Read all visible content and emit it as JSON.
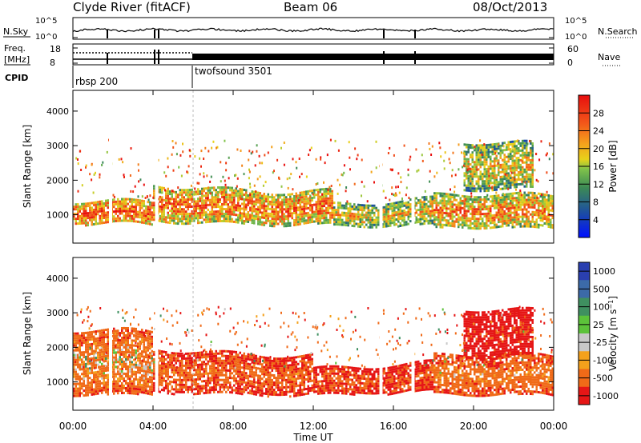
{
  "header": {
    "station": "Clyde River (fitACF)",
    "beam": "Beam 06",
    "date": "08/Oct/2013"
  },
  "top_panel": {
    "left_label": "N.Sky",
    "right_label": "N.Search",
    "left_ticks": [
      "10^5",
      "10^0"
    ],
    "right_ticks": [
      "10^5",
      "10^0"
    ]
  },
  "freq_panel": {
    "left_label_1": "Freq.",
    "left_label_2": "[MHz]",
    "left_ticks": [
      "18",
      "8"
    ],
    "right_label": "Nave",
    "right_ticks": [
      "60",
      "0"
    ]
  },
  "cpid_panel": {
    "label": "CPID",
    "modes": [
      "rbsp 200",
      "twofsound 3501"
    ]
  },
  "chart_data": [
    {
      "type": "heatmap",
      "parameter": "power",
      "xlabel": "Time UT",
      "ylabel": "Slant Range [km]",
      "x_ticks": [
        "00:00",
        "04:00",
        "08:00",
        "12:00",
        "16:00",
        "20:00",
        "00:00"
      ],
      "x_range_hours": [
        0,
        24
      ],
      "y_ticks": [
        1000,
        2000,
        3000,
        4000
      ],
      "y_range_km": [
        180,
        4600
      ],
      "colorbar": {
        "label": "Power [dB]",
        "range": [
          0,
          32
        ],
        "ticks": [
          "4",
          "8",
          "12",
          "16",
          "20",
          "24",
          "28"
        ]
      },
      "echo_bands": [
        {
          "start_h": 0.0,
          "end_h": 4.0,
          "range_km": [
            700,
            1300
          ],
          "level": 27
        },
        {
          "start_h": 4.0,
          "end_h": 13.0,
          "range_km": [
            800,
            1800
          ],
          "level": 25
        },
        {
          "start_h": 13.0,
          "end_h": 18.0,
          "range_km": [
            700,
            1400
          ],
          "level": 20
        },
        {
          "start_h": 18.0,
          "end_h": 24.0,
          "range_km": [
            600,
            1500
          ],
          "level": 24
        },
        {
          "start_h": 19.5,
          "end_h": 23.0,
          "range_km": [
            1700,
            3000
          ],
          "level": 20
        }
      ]
    },
    {
      "type": "heatmap",
      "parameter": "velocity",
      "xlabel": "Time UT",
      "ylabel": "Slant Range [km]",
      "x_ticks": [
        "00:00",
        "04:00",
        "08:00",
        "12:00",
        "16:00",
        "20:00",
        "00:00"
      ],
      "x_range_hours": [
        0,
        24
      ],
      "y_ticks": [
        1000,
        2000,
        3000,
        4000
      ],
      "y_range_km": [
        180,
        4600
      ],
      "colorbar": {
        "label": "Velocity [m s^-1]",
        "ticks": [
          "1000",
          "500",
          "100",
          "25",
          "-25",
          "-100",
          "-500",
          "-1000"
        ]
      },
      "echo_bands": [
        {
          "start_h": 0.0,
          "end_h": 4.0,
          "range_km": [
            600,
            2400
          ],
          "level": -100
        },
        {
          "start_h": 4.0,
          "end_h": 12.0,
          "range_km": [
            700,
            1900
          ],
          "level": -300
        },
        {
          "start_h": 12.0,
          "end_h": 18.0,
          "range_km": [
            700,
            1500
          ],
          "level": -400
        },
        {
          "start_h": 18.0,
          "end_h": 24.0,
          "range_km": [
            600,
            1700
          ],
          "level": -200
        },
        {
          "start_h": 19.5,
          "end_h": 23.0,
          "range_km": [
            1700,
            3000
          ],
          "level": -600
        }
      ]
    }
  ]
}
